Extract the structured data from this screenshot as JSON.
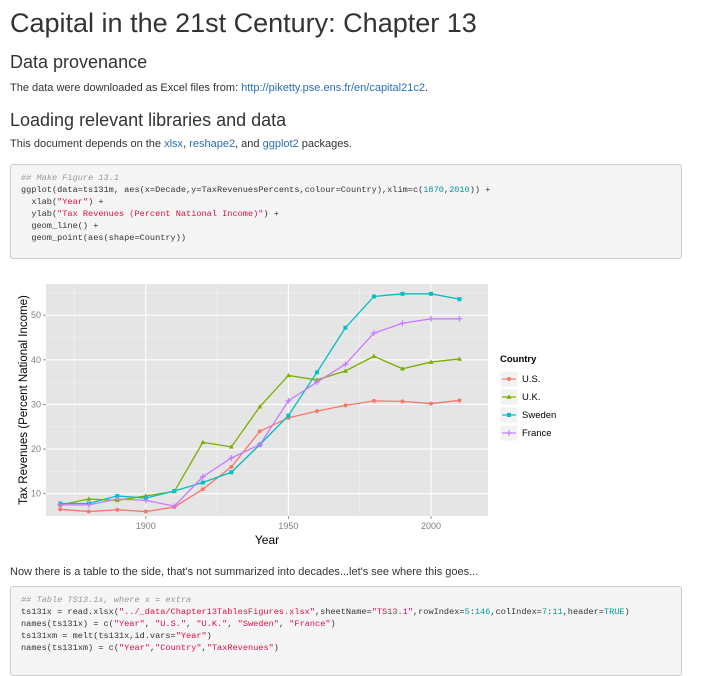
{
  "title": "Capital in the 21st Century: Chapter 13",
  "sections": {
    "provenance": {
      "heading": "Data provenance",
      "text": "The data were downloaded as Excel files from: ",
      "link": "http://piketty.pse.ens.fr/en/capital21c2",
      "tail": "."
    },
    "libraries": {
      "heading": "Loading relevant libraries and data",
      "text_prefix": "This document depends on the ",
      "link1": "xlsx",
      "sep1": ", ",
      "link2": "reshape2",
      "sep2": ", and ",
      "link3": "ggplot2",
      "text_suffix": " packages."
    }
  },
  "code1": {
    "comment": "## Make Figure 13.1",
    "l1a": "ggplot(data=ts131m, aes(x=Decade,y=TaxRevenuesPercents,colour=Country),xlim=c(",
    "l1n1": "1870",
    "l1s": ",",
    "l1n2": "2010",
    "l1b": ")) +",
    "l2a": "  xlab(",
    "l2s": "\"Year\"",
    "l2b": ") +",
    "l3a": "  ylab(",
    "l3s": "\"Tax Revenues (Percent National Income)\"",
    "l3b": ") +",
    "l4": "  geom_line() +",
    "l5": "  geom_point(aes(shape=Country))"
  },
  "between_text": "Now there is a table to the side, that's not summarized into decades...let's see where this goes...",
  "code2": {
    "comment": "## Table TS13.1x, where x = extra",
    "l1a": "ts131x = read.xlsx(",
    "l1s1": "\"../_data/Chapter13TablesFigures.xlsx\"",
    "l1b": ",sheetName=",
    "l1s2": "\"TS13.1\"",
    "l1c": ",rowIndex=",
    "l1n1": "5",
    "l1d": ":",
    "l1n2": "146",
    "l1e": ",colIndex=",
    "l1n3": "7",
    "l1f": ":",
    "l1n4": "11",
    "l1g": ",header=",
    "l1n5": "TRUE",
    "l1h": ")",
    "l2a": "names(ts131x) = c(",
    "l2s1": "\"Year\"",
    "l2s2": "\"U.S.\"",
    "l2s3": "\"U.K.\"",
    "l2s4": "\"Sweden\"",
    "l2s5": "\"France\"",
    "comma": ", ",
    "close": ")",
    "l3a": "ts131xm = melt(ts131x,id.vars=",
    "l3s": "\"Year\"",
    "l4a": "names(ts131xm) = c(",
    "l4s1": "\"Year\"",
    "l4s2": "\"Country\"",
    "l4s3": "\"TaxRevenues\"",
    "l4sep": ","
  },
  "chart_data": {
    "type": "line",
    "xlabel": "Year",
    "ylabel": "Tax Revenues (Percent National Income)",
    "xlim": [
      1865,
      2020
    ],
    "ylim": [
      5,
      57
    ],
    "x_ticks": [
      1900,
      1950,
      2000
    ],
    "y_ticks": [
      10,
      20,
      30,
      40,
      50
    ],
    "legend_title": "Country",
    "legend_position": "right",
    "grid": true,
    "x": [
      1870,
      1880,
      1890,
      1900,
      1910,
      1920,
      1930,
      1940,
      1950,
      1960,
      1970,
      1980,
      1990,
      2000,
      2010
    ],
    "series": [
      {
        "name": "U.S.",
        "color": "#f8766d",
        "shape": "circle",
        "values": [
          6.5,
          6.0,
          6.4,
          6.0,
          7.0,
          11.0,
          16.0,
          24.0,
          27.0,
          28.5,
          29.8,
          30.8,
          30.7,
          30.2,
          30.9
        ]
      },
      {
        "name": "U.K.",
        "color": "#7cae00",
        "shape": "triangle",
        "values": [
          7.5,
          8.8,
          8.5,
          9.5,
          10.5,
          21.5,
          20.5,
          29.5,
          36.5,
          35.5,
          37.5,
          40.8,
          38.0,
          39.5,
          40.2
        ]
      },
      {
        "name": "Sweden",
        "color": "#00bfc4",
        "shape": "square",
        "values": [
          7.8,
          7.8,
          9.5,
          9.0,
          10.6,
          12.5,
          14.8,
          21.0,
          27.5,
          37.2,
          47.2,
          54.2,
          54.8,
          54.8,
          53.6
        ]
      },
      {
        "name": "France",
        "color": "#c77cff",
        "shape": "plus",
        "values": [
          7.5,
          7.5,
          8.8,
          8.5,
          7.2,
          13.8,
          18.0,
          21.0,
          30.8,
          35.0,
          39.0,
          46.0,
          48.2,
          49.2,
          49.2
        ]
      }
    ]
  }
}
